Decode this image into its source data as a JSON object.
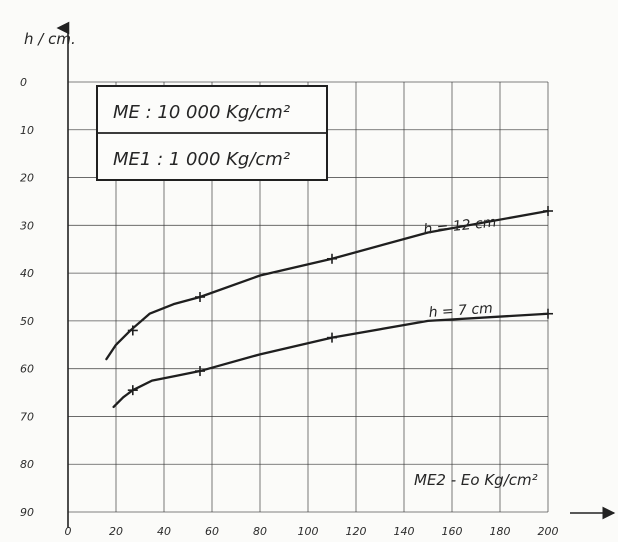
{
  "chart_data": {
    "type": "line",
    "ylabel": "h / cm.",
    "xlabel": "ME2 - Eo Kg/cm²",
    "legend": [
      "ME : 10 000 Kg/cm²",
      "ME1 : 1 000 Kg/cm²"
    ],
    "x_ticks": [
      "0",
      "20",
      "40",
      "60",
      "80",
      "100",
      "120",
      "140",
      "160",
      "180",
      "200"
    ],
    "y_ticks": [
      "0",
      "10",
      "20",
      "30",
      "40",
      "50",
      "60",
      "70",
      "80",
      "90"
    ],
    "xlim": [
      0,
      200
    ],
    "ylim": [
      0,
      90
    ],
    "y_inverted": true,
    "grid": true,
    "series": [
      {
        "name": "h = 12 cm",
        "x": [
          16,
          20,
          26,
          34,
          44,
          55,
          80,
          110,
          150,
          200
        ],
        "y": [
          58,
          55,
          52,
          48.5,
          46.5,
          45,
          40.5,
          37,
          31.5,
          27
        ],
        "markers": [
          {
            "x": 27,
            "y": 52
          },
          {
            "x": 55,
            "y": 45
          },
          {
            "x": 110,
            "y": 37
          },
          {
            "x": 200,
            "y": 27
          }
        ]
      },
      {
        "name": "h = 7 cm",
        "x": [
          19,
          23,
          27,
          35,
          45,
          55,
          80,
          110,
          150,
          200
        ],
        "y": [
          68,
          66,
          64.5,
          62.5,
          61.5,
          60.5,
          57,
          53.5,
          50,
          48.5
        ],
        "markers": [
          {
            "x": 27,
            "y": 64.5
          },
          {
            "x": 55,
            "y": 60.5
          },
          {
            "x": 110,
            "y": 53.5
          },
          {
            "x": 200,
            "y": 48.5
          }
        ]
      }
    ]
  }
}
